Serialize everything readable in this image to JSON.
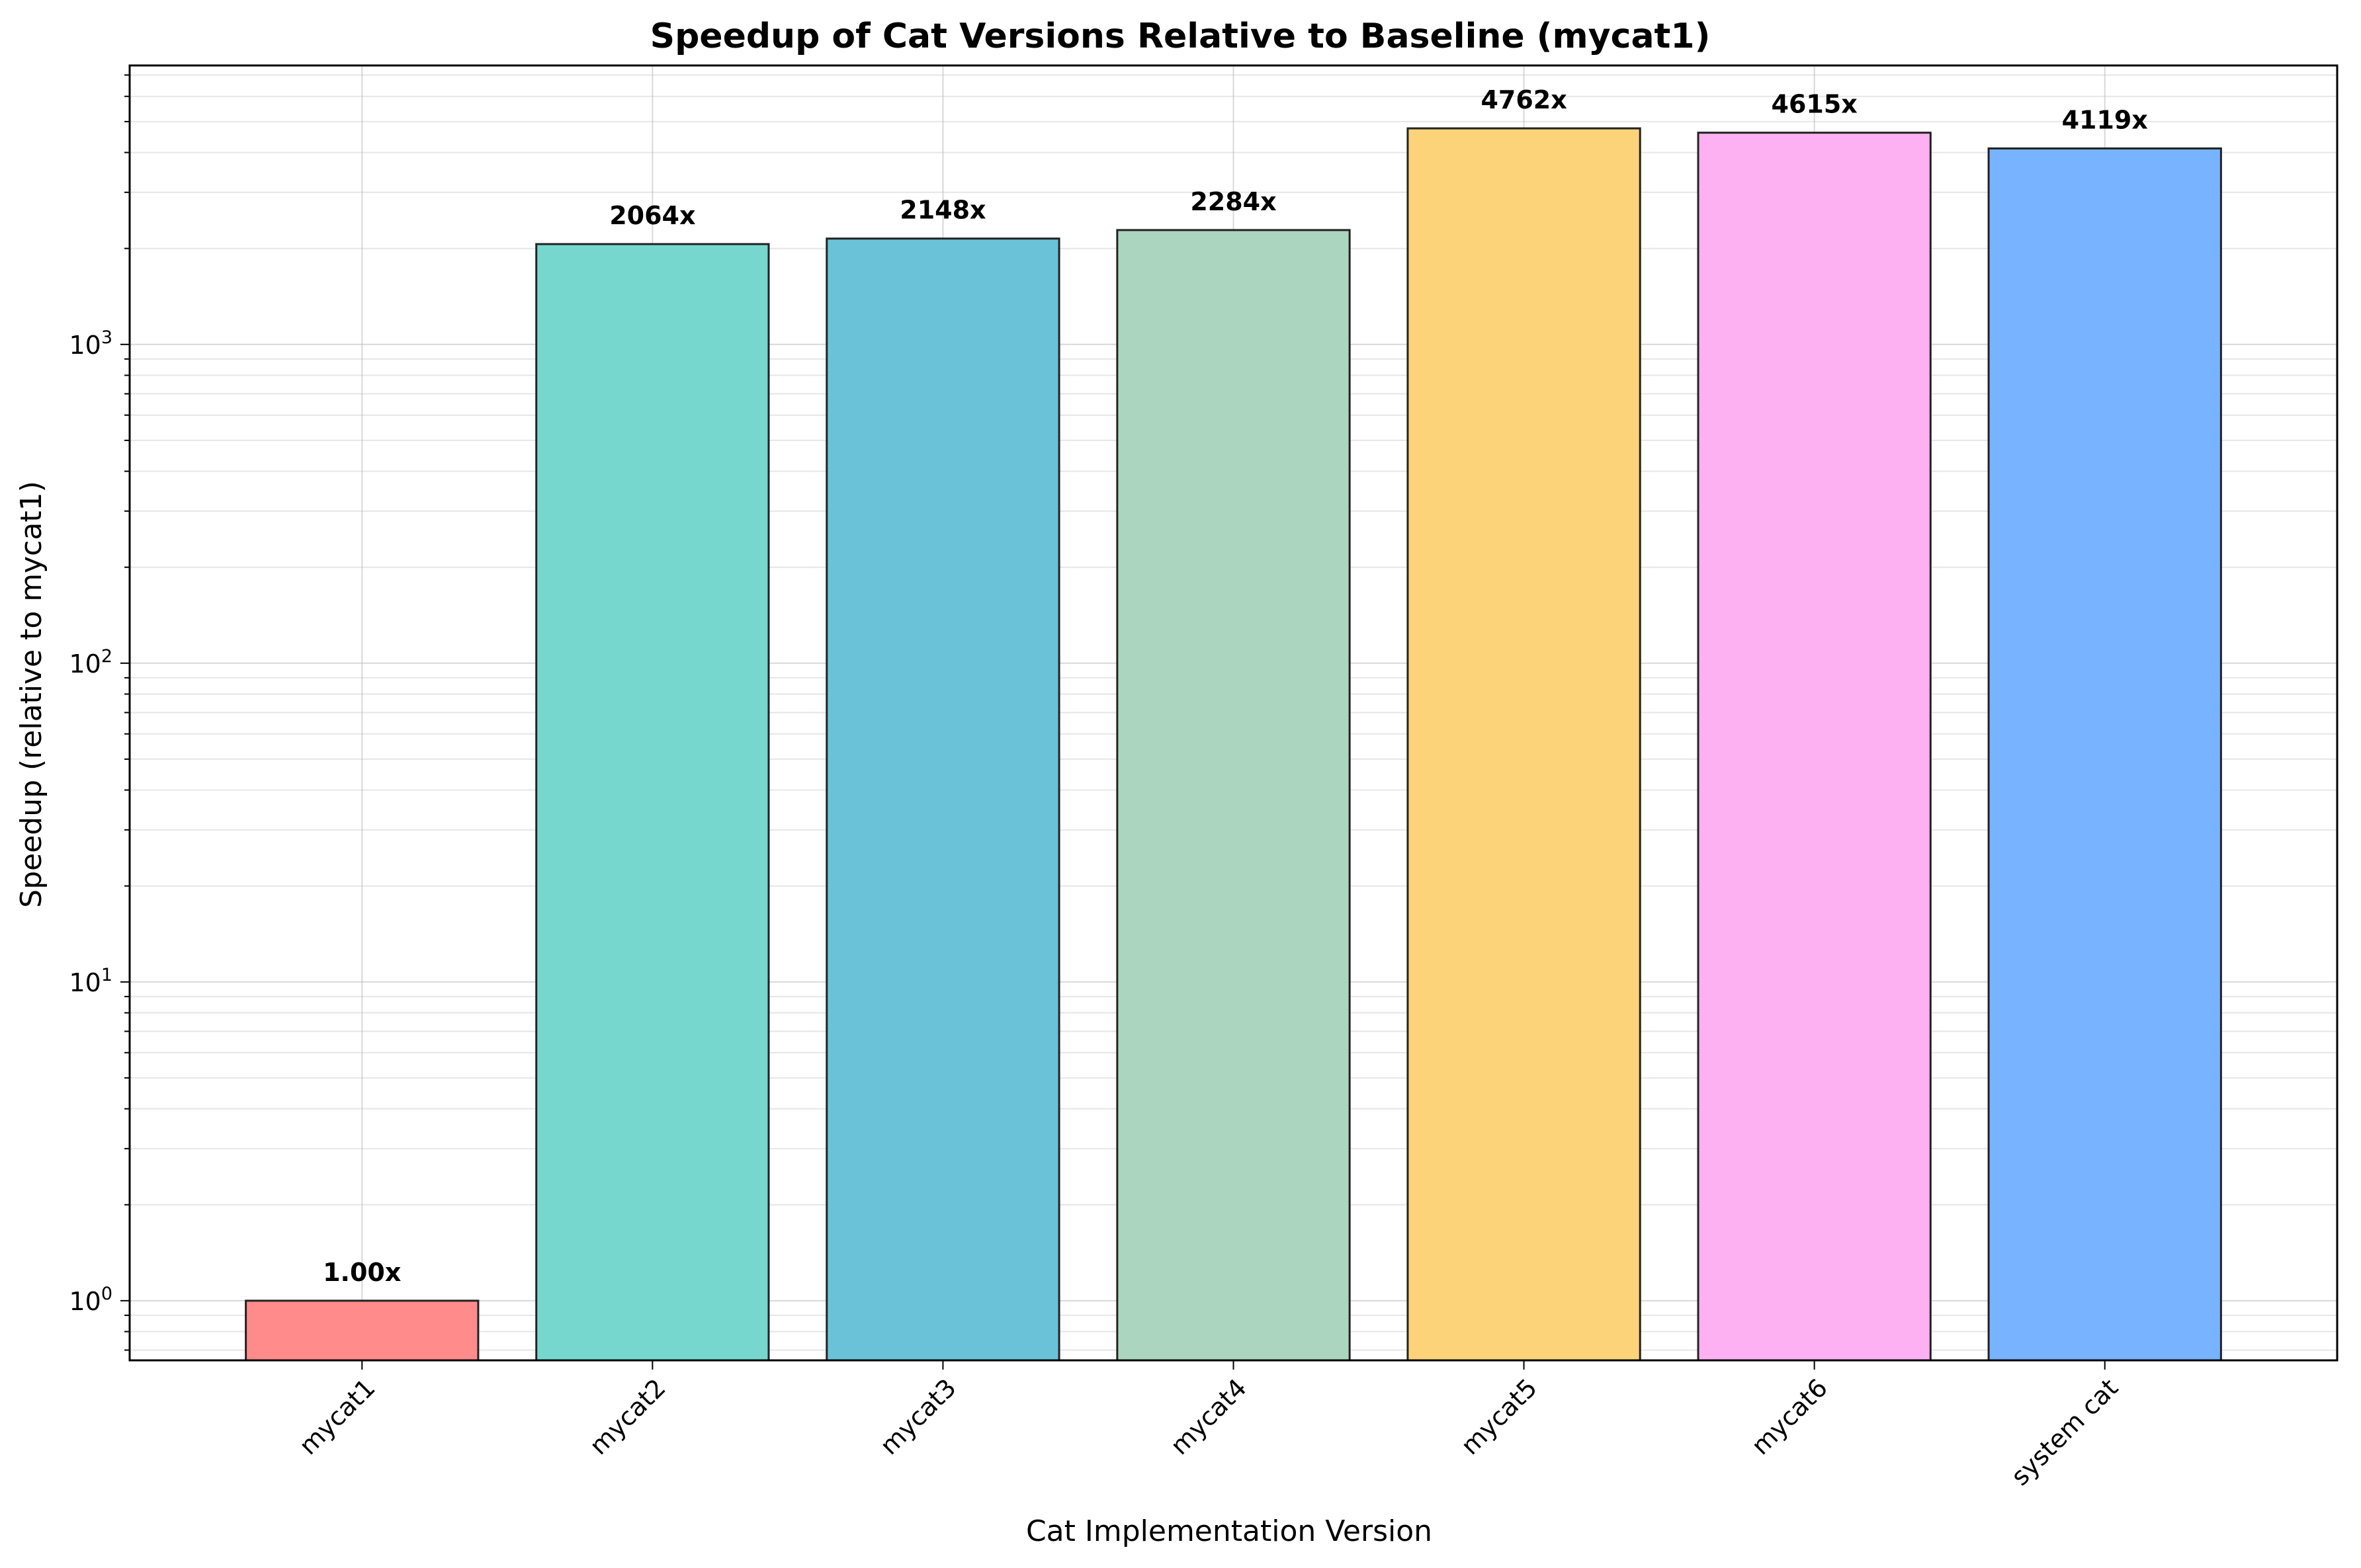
{
  "chart_data": {
    "type": "bar",
    "title": "Speedup of Cat Versions Relative to Baseline (mycat1)",
    "xlabel": "Cat Implementation Version",
    "ylabel": "Speedup (relative to mycat1)",
    "yscale": "log",
    "ylim": [
      0.65,
      7500
    ],
    "y_ticks": [
      {
        "value": 1,
        "base": "10",
        "exp": "0"
      },
      {
        "value": 10,
        "base": "10",
        "exp": "1"
      },
      {
        "value": 100,
        "base": "10",
        "exp": "2"
      },
      {
        "value": 1000,
        "base": "10",
        "exp": "3"
      }
    ],
    "grid": true,
    "categories": [
      "mycat1",
      "mycat2",
      "mycat3",
      "mycat4",
      "mycat5",
      "mycat6",
      "system cat"
    ],
    "values": [
      1.0,
      2064,
      2148,
      2284,
      4762,
      4615,
      4119
    ],
    "data_labels": [
      "1.00x",
      "2064x",
      "2148x",
      "2284x",
      "4762x",
      "4615x",
      "4119x"
    ],
    "colors": [
      "#ff8b8b",
      "#76d7ce",
      "#6ac2d8",
      "#acd5c0",
      "#fdd37a",
      "#fdb0f2",
      "#77b3ff"
    ]
  }
}
